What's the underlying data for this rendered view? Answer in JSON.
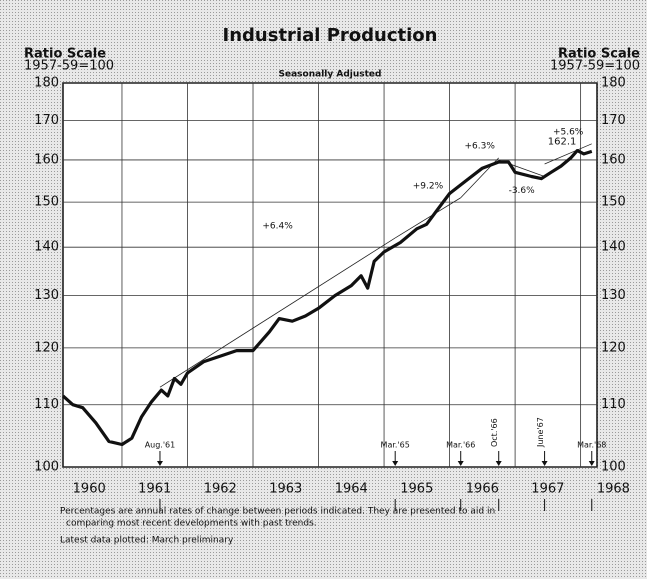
{
  "chart_data": {
    "type": "line",
    "title": "Industrial Production",
    "subtitle": "Seasonally Adjusted",
    "y_axis_label": [
      "Ratio Scale",
      "1957-59=100"
    ],
    "log_scale": true,
    "grid": true,
    "ylim": [
      100,
      180
    ],
    "yticks": [
      100,
      110,
      120,
      130,
      140,
      150,
      160,
      170,
      180
    ],
    "xlim": [
      1960.1,
      1968.25
    ],
    "xticks": [
      1960,
      1961,
      1962,
      1963,
      1964,
      1965,
      1966,
      1967,
      1968
    ],
    "series": [
      {
        "name": "Industrial Production",
        "color": "#111111",
        "x": [
          1960.1,
          1960.25,
          1960.4,
          1960.6,
          1960.8,
          1961.0,
          1961.15,
          1961.3,
          1961.45,
          1961.6,
          1961.7,
          1961.8,
          1961.9,
          1962.0,
          1962.25,
          1962.5,
          1962.75,
          1963.0,
          1963.25,
          1963.4,
          1963.6,
          1963.8,
          1964.0,
          1964.25,
          1964.5,
          1964.65,
          1964.75,
          1964.85,
          1965.0,
          1965.25,
          1965.5,
          1965.65,
          1965.8,
          1966.0,
          1966.25,
          1966.5,
          1966.75,
          1966.9,
          1967.0,
          1967.25,
          1967.4,
          1967.55,
          1967.7,
          1967.85,
          1967.95,
          1968.05,
          1968.17
        ],
        "values": [
          111.5,
          110,
          109.5,
          107,
          104,
          103.5,
          104.5,
          108,
          110.5,
          112.5,
          111.5,
          114.5,
          113.5,
          115.5,
          117.5,
          118.5,
          119.5,
          119.5,
          123,
          125.5,
          125,
          126,
          127.5,
          130,
          132,
          134,
          131.5,
          137,
          139,
          141,
          144,
          145,
          148,
          152,
          155,
          158,
          159.5,
          159.5,
          157,
          156,
          155.5,
          157,
          158.5,
          160.5,
          162.3,
          161.5,
          162.1
        ]
      }
    ],
    "end_label": "162.1",
    "trends": [
      {
        "label": "+6.4%",
        "x": [
          1961.58,
          1965.17
        ],
        "y": [
          113,
          142
        ]
      },
      {
        "label": "+9.2%",
        "x": [
          1965.17,
          1966.17
        ],
        "y": [
          142,
          151
        ]
      },
      {
        "label": "+6.3%",
        "x": [
          1966.17,
          1966.75
        ],
        "y": [
          151,
          160.5
        ]
      },
      {
        "label": "-3.6%",
        "x": [
          1966.75,
          1967.45
        ],
        "y": [
          160,
          156
        ]
      },
      {
        "label": "+5.6%",
        "x": [
          1967.45,
          1968.17
        ],
        "y": [
          159,
          164
        ]
      }
    ],
    "markers": [
      {
        "label": "Aug.'61",
        "x": 1961.58
      },
      {
        "label": "Mar.'65",
        "x": 1965.17
      },
      {
        "label": "Mar.'66",
        "x": 1966.17
      },
      {
        "label": "Oct.'66",
        "x": 1966.75
      },
      {
        "label": "June'67",
        "x": 1967.45
      },
      {
        "label": "Mar.'68",
        "x": 1968.17
      }
    ],
    "footnotes": [
      "Percentages are annual rates of change between periods indicated. They are presented to aid in",
      "comparing most recent developments with past trends.",
      "Latest data plotted: March preliminary"
    ]
  }
}
